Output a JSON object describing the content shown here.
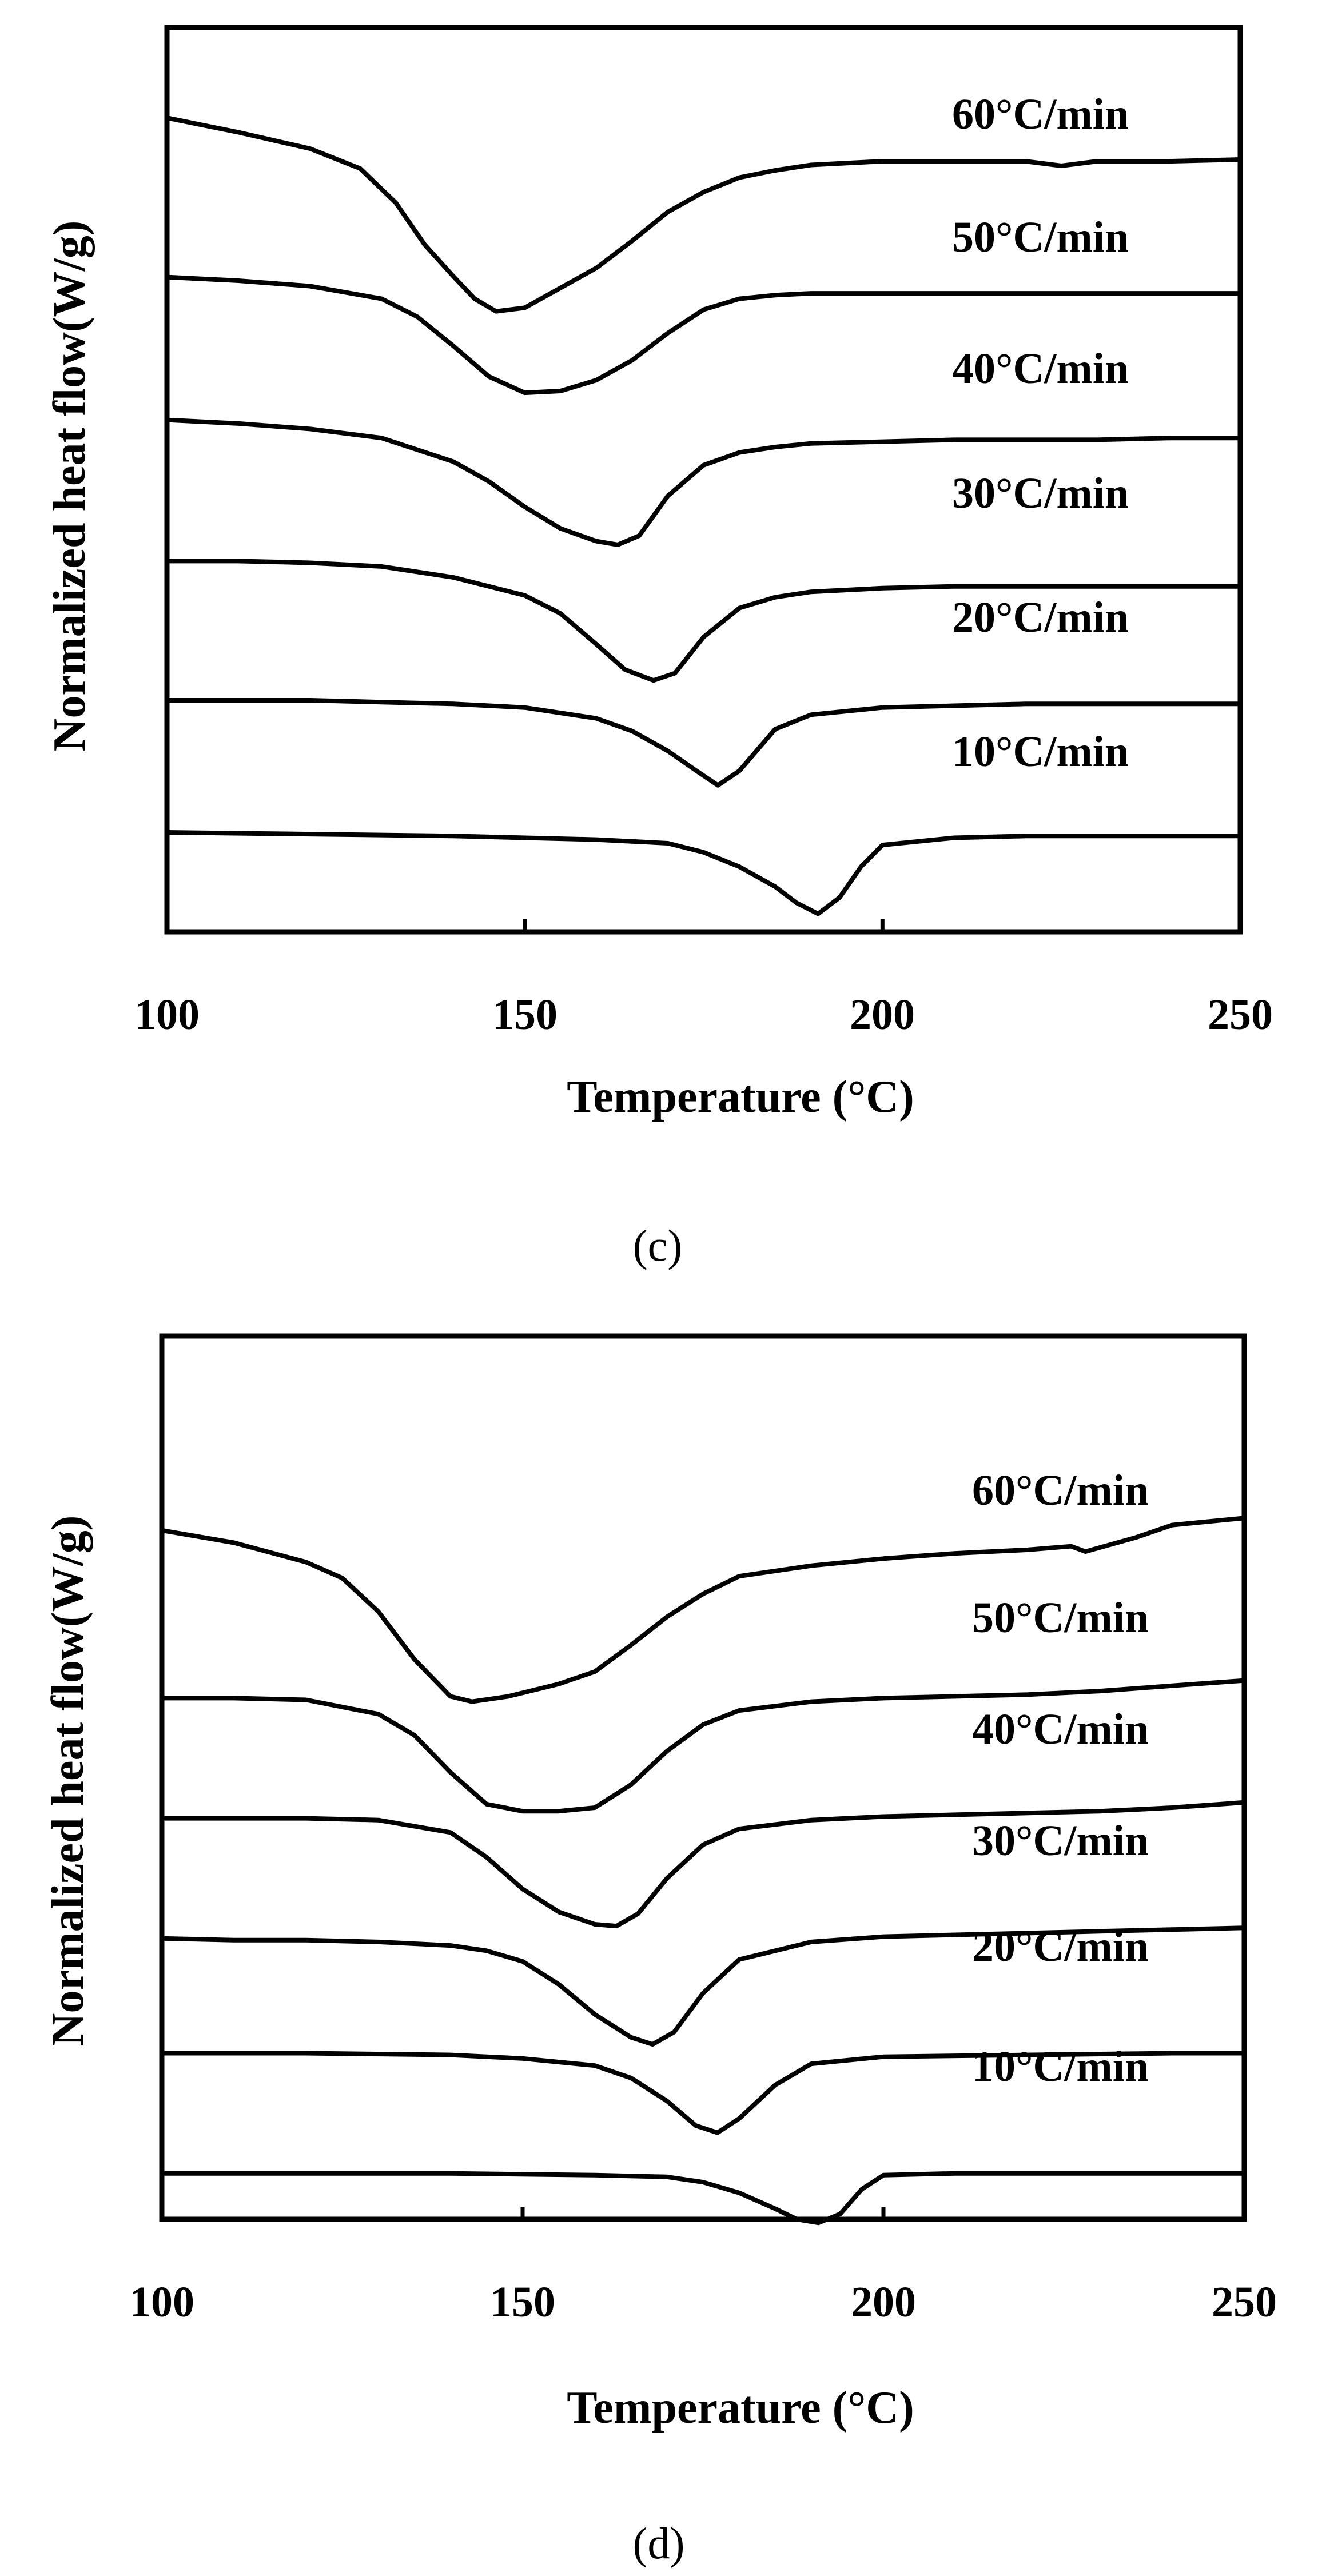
{
  "chart_data": [
    {
      "type": "line",
      "caption": "(c)",
      "xlabel": "Temperature (°C)",
      "ylabel": "Normalized heat flow(W/g)",
      "xlim": [
        100,
        250
      ],
      "xticks": [
        "100",
        "150",
        "200",
        "250"
      ],
      "ylim": [
        0,
        10
      ],
      "grid": false,
      "series": [
        {
          "name": "60°C/min",
          "label": "60°C/min",
          "x": [
            100,
            110,
            120,
            127,
            132,
            136,
            140,
            143,
            146,
            150,
            155,
            160,
            165,
            170,
            175,
            180,
            185,
            190,
            200,
            210,
            220,
            225,
            230,
            240,
            250
          ],
          "y": [
            9.0,
            8.84,
            8.66,
            8.44,
            8.06,
            7.6,
            7.25,
            7.0,
            6.86,
            6.9,
            7.12,
            7.34,
            7.64,
            7.96,
            8.18,
            8.34,
            8.42,
            8.48,
            8.52,
            8.52,
            8.52,
            8.47,
            8.52,
            8.52,
            8.54
          ]
        },
        {
          "name": "50°C/min",
          "label": "50°C/min",
          "x": [
            100,
            110,
            120,
            130,
            135,
            140,
            145,
            150,
            155,
            160,
            165,
            170,
            175,
            180,
            185,
            190,
            200,
            210,
            220,
            230,
            240,
            250
          ],
          "y": [
            7.24,
            7.2,
            7.14,
            7.0,
            6.8,
            6.48,
            6.14,
            5.96,
            5.98,
            6.1,
            6.32,
            6.62,
            6.88,
            7.0,
            7.04,
            7.06,
            7.06,
            7.06,
            7.06,
            7.06,
            7.06,
            7.06
          ]
        },
        {
          "name": "40°C/min",
          "label": "40°C/min",
          "x": [
            100,
            110,
            120,
            130,
            140,
            145,
            150,
            155,
            160,
            163,
            166,
            170,
            175,
            180,
            185,
            190,
            200,
            210,
            220,
            230,
            240,
            250
          ],
          "y": [
            5.66,
            5.62,
            5.56,
            5.46,
            5.2,
            4.98,
            4.7,
            4.46,
            4.32,
            4.28,
            4.38,
            4.82,
            5.16,
            5.3,
            5.36,
            5.4,
            5.42,
            5.44,
            5.44,
            5.44,
            5.46,
            5.46
          ]
        },
        {
          "name": "30°C/min",
          "label": "30°C/min",
          "x": [
            100,
            110,
            120,
            130,
            140,
            150,
            155,
            160,
            164,
            168,
            171,
            175,
            180,
            185,
            190,
            200,
            210,
            220,
            230,
            240,
            250
          ],
          "y": [
            4.1,
            4.1,
            4.08,
            4.04,
            3.92,
            3.72,
            3.52,
            3.18,
            2.9,
            2.78,
            2.86,
            3.26,
            3.58,
            3.7,
            3.76,
            3.8,
            3.82,
            3.82,
            3.82,
            3.82,
            3.82
          ]
        },
        {
          "name": "20°C/min",
          "label": "20°C/min",
          "x": [
            100,
            110,
            120,
            130,
            140,
            150,
            160,
            165,
            170,
            174,
            177,
            180,
            185,
            190,
            200,
            210,
            220,
            230,
            240,
            250
          ],
          "y": [
            2.56,
            2.56,
            2.56,
            2.54,
            2.52,
            2.48,
            2.36,
            2.22,
            2.0,
            1.78,
            1.62,
            1.78,
            2.24,
            2.4,
            2.48,
            2.5,
            2.52,
            2.52,
            2.52,
            2.52
          ]
        },
        {
          "name": "10°C/min",
          "label": "10°C/min",
          "x": [
            100,
            120,
            140,
            160,
            170,
            175,
            180,
            185,
            188,
            191,
            194,
            197,
            200,
            210,
            220,
            230,
            240,
            250
          ],
          "y": [
            1.1,
            1.08,
            1.06,
            1.02,
            0.98,
            0.88,
            0.72,
            0.5,
            0.32,
            0.2,
            0.38,
            0.72,
            0.96,
            1.04,
            1.06,
            1.06,
            1.06,
            1.06
          ]
        }
      ]
    },
    {
      "type": "line",
      "caption": "(d)",
      "xlabel": "Temperature (°C)",
      "ylabel": "Normalized heat flow(W/g)",
      "xlim": [
        100,
        250
      ],
      "xticks": [
        "100",
        "150",
        "200",
        "250"
      ],
      "ylim": [
        0,
        10
      ],
      "grid": false,
      "series": [
        {
          "name": "60°C/min",
          "label": "60°C/min",
          "x": [
            100,
            110,
            120,
            125,
            130,
            135,
            140,
            143,
            148,
            155,
            160,
            165,
            170,
            175,
            180,
            190,
            200,
            210,
            220,
            226,
            228,
            235,
            240,
            250
          ],
          "y": [
            7.8,
            7.66,
            7.44,
            7.26,
            6.88,
            6.34,
            5.92,
            5.86,
            5.92,
            6.06,
            6.2,
            6.5,
            6.82,
            7.08,
            7.28,
            7.4,
            7.48,
            7.54,
            7.58,
            7.62,
            7.56,
            7.72,
            7.86,
            7.94
          ]
        },
        {
          "name": "50°C/min",
          "label": "50°C/min",
          "x": [
            100,
            110,
            120,
            130,
            135,
            140,
            145,
            150,
            155,
            160,
            165,
            170,
            175,
            180,
            190,
            200,
            210,
            220,
            230,
            240,
            250
          ],
          "y": [
            5.9,
            5.9,
            5.88,
            5.72,
            5.48,
            5.06,
            4.7,
            4.62,
            4.62,
            4.66,
            4.92,
            5.3,
            5.6,
            5.76,
            5.86,
            5.9,
            5.92,
            5.94,
            5.98,
            6.04,
            6.1
          ]
        },
        {
          "name": "40°C/min",
          "label": "40°C/min",
          "x": [
            100,
            110,
            120,
            130,
            140,
            145,
            150,
            155,
            160,
            163,
            166,
            170,
            175,
            180,
            190,
            200,
            210,
            220,
            230,
            240,
            250
          ],
          "y": [
            4.54,
            4.54,
            4.54,
            4.52,
            4.38,
            4.1,
            3.74,
            3.48,
            3.34,
            3.32,
            3.46,
            3.86,
            4.24,
            4.42,
            4.52,
            4.56,
            4.58,
            4.6,
            4.62,
            4.66,
            4.72
          ]
        },
        {
          "name": "30°C/min",
          "label": "30°C/min",
          "x": [
            100,
            110,
            120,
            130,
            140,
            145,
            150,
            155,
            160,
            165,
            168,
            171,
            175,
            180,
            190,
            200,
            210,
            220,
            230,
            240,
            250
          ],
          "y": [
            3.18,
            3.16,
            3.16,
            3.14,
            3.1,
            3.04,
            2.92,
            2.66,
            2.32,
            2.06,
            1.98,
            2.12,
            2.56,
            2.94,
            3.14,
            3.2,
            3.22,
            3.24,
            3.26,
            3.28,
            3.3
          ]
        },
        {
          "name": "20°C/min",
          "label": "20°C/min",
          "x": [
            100,
            120,
            140,
            150,
            160,
            165,
            170,
            174,
            177,
            180,
            185,
            190,
            200,
            220,
            240,
            250
          ],
          "y": [
            1.88,
            1.88,
            1.86,
            1.82,
            1.74,
            1.6,
            1.34,
            1.06,
            0.98,
            1.14,
            1.52,
            1.76,
            1.84,
            1.86,
            1.88,
            1.88
          ]
        },
        {
          "name": "10°C/min",
          "label": "10°C/min",
          "x": [
            100,
            120,
            140,
            160,
            170,
            175,
            180,
            185,
            188,
            191,
            194,
            197,
            200,
            210,
            230,
            250
          ],
          "y": [
            0.52,
            0.52,
            0.52,
            0.5,
            0.48,
            0.42,
            0.3,
            0.12,
            0.0,
            -0.04,
            0.06,
            0.34,
            0.5,
            0.52,
            0.52,
            0.52
          ]
        }
      ]
    }
  ]
}
